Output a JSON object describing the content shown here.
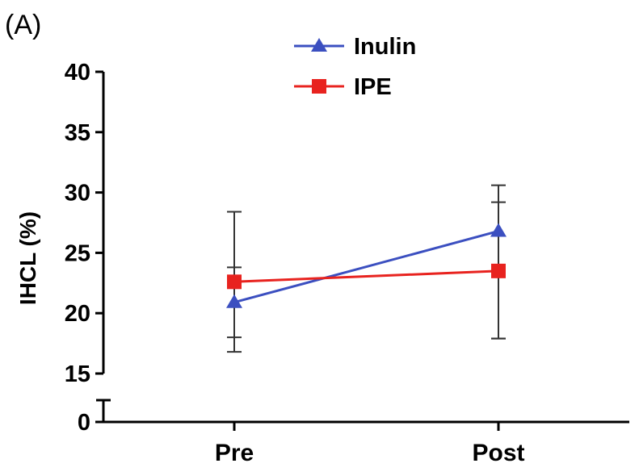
{
  "panel_label": "(A)",
  "chart_data": {
    "type": "line",
    "title": "",
    "xlabel": "",
    "ylabel": "IHCL (%)",
    "categories": [
      "Pre",
      "Post"
    ],
    "y_ticks": [
      "0",
      "15",
      "20",
      "25",
      "30",
      "35",
      "40"
    ],
    "ylim": [
      15,
      40
    ],
    "y_axis_break": true,
    "grid": false,
    "legend_position": "top-center",
    "series": [
      {
        "name": "Inulin",
        "color": "#3b4fc0",
        "marker": "triangle",
        "values": [
          20.9,
          26.8
        ],
        "error_low": [
          16.8,
          17.9
        ],
        "error_high": [
          28.4,
          30.6
        ]
      },
      {
        "name": "IPE",
        "color": "#e8231f",
        "marker": "square",
        "values": [
          22.6,
          23.5
        ],
        "error_low": [
          18.0,
          17.9
        ],
        "error_high": [
          23.8,
          29.2
        ]
      }
    ]
  }
}
